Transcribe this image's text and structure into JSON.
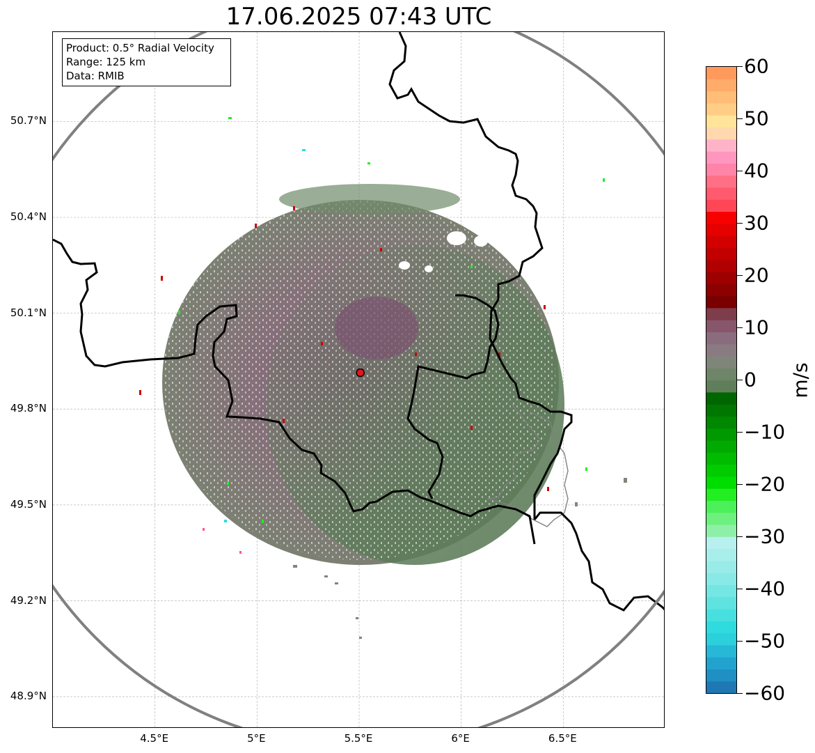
{
  "title": "17.06.2025 07:43 UTC",
  "info_box": {
    "product": "Product: 0.5° Radial Velocity",
    "range": "Range: 125 km",
    "data": "Data: RMIB"
  },
  "axes": {
    "lat_labels": [
      "50.7°N",
      "50.4°N",
      "50.1°N",
      "49.8°N",
      "49.5°N",
      "49.2°N",
      "48.9°N"
    ],
    "lon_labels": [
      "4.5°E",
      "5°E",
      "5.5°E",
      "6°E",
      "6.5°E"
    ],
    "lat_values": [
      50.7,
      50.4,
      50.1,
      49.8,
      49.5,
      49.2,
      48.9
    ],
    "lon_values": [
      4.5,
      5.0,
      5.5,
      6.0,
      6.5
    ],
    "lon_range": [
      4.0,
      7.0
    ],
    "lat_range": [
      48.8,
      50.98
    ]
  },
  "radar": {
    "site_lat": 49.914,
    "site_lon": 5.506,
    "range_km": 125,
    "site_marker_color": "#e8141c",
    "range_ring_color": "#808080"
  },
  "colorbar": {
    "unit": "m/s",
    "min": -60,
    "max": 60,
    "tick_labels": [
      "60",
      "50",
      "40",
      "30",
      "20",
      "10",
      "0",
      "−10",
      "−20",
      "−30",
      "−40",
      "−50",
      "−60"
    ],
    "tick_values": [
      60,
      50,
      40,
      30,
      20,
      10,
      0,
      -10,
      -20,
      -30,
      -40,
      -50,
      -60
    ],
    "colors": [
      "#1f77b4",
      "#1f8fc4",
      "#22a3cf",
      "#26b8d6",
      "#2ccfdc",
      "#2fdbde",
      "#47e0df",
      "#5ee3e1",
      "#74e6e3",
      "#88e9e6",
      "#99ebe8",
      "#a8eeeb",
      "#b7f0ee",
      "#8ef0a8",
      "#6ef07e",
      "#4cf05a",
      "#22ee22",
      "#00dd00",
      "#00cc00",
      "#00bb00",
      "#00aa00",
      "#009900",
      "#008800",
      "#007700",
      "#006600",
      "#5f7f5a",
      "#6e8569",
      "#7f8679",
      "#8a7a82",
      "#8a6c7e",
      "#87566a",
      "#7e3d4b",
      "#7a0000",
      "#8c0000",
      "#9e0000",
      "#b00000",
      "#c20000",
      "#d40000",
      "#e60000",
      "#f70000",
      "#ff4657",
      "#ff5a6e",
      "#ff6f86",
      "#ff84a7",
      "#ff96bf",
      "#ffb3c8",
      "#ffd8ad",
      "#ffe49a",
      "#ffcd86",
      "#ffbd78",
      "#ffab6a",
      "#ff9a5c"
    ]
  },
  "chart_data": {
    "type": "map",
    "title": "17.06.2025 07:43 UTC",
    "product": "0.5° Radial Velocity",
    "range_km": 125,
    "source": "RMIB",
    "colorbar_unit": "m/s",
    "colorbar_range": [
      -60,
      60
    ]
  }
}
